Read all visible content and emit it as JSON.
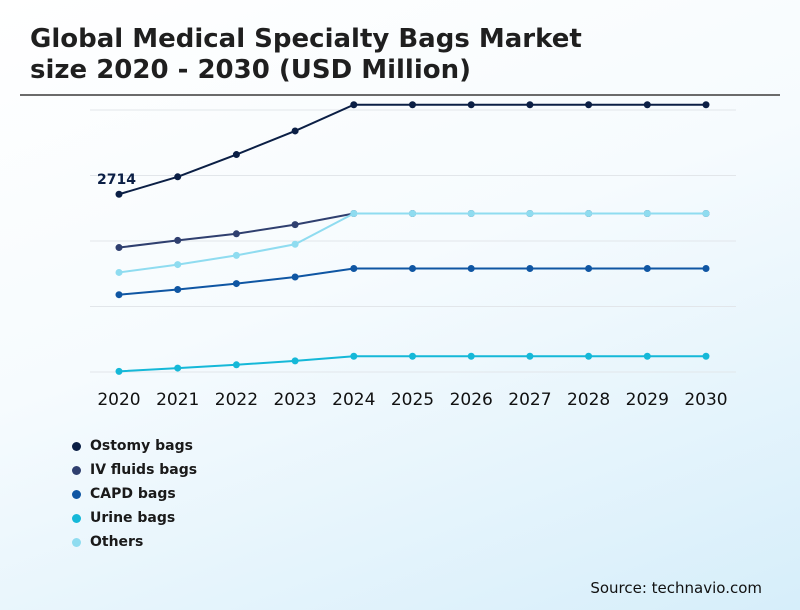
{
  "title_line1": "Global Medical Specialty Bags Market",
  "title_line2": "size 2020 - 2030 (USD Million)",
  "source": "Source: technavio.com",
  "chart_data": {
    "type": "line",
    "title": "Global Medical Specialty Bags Market size 2020 - 2030 (USD Million)",
    "xlabel": "",
    "ylabel": "",
    "x": [
      "2020",
      "2021",
      "2022",
      "2023",
      "2024",
      "2025",
      "2026",
      "2027",
      "2028",
      "2029",
      "2030"
    ],
    "ylim": [
      0,
      4000
    ],
    "grid": true,
    "legend": "bottom-left",
    "series": [
      {
        "name": "Ostomy bags",
        "color": "#0b1f45",
        "values": [
          2714,
          2980,
          3320,
          3680,
          4080,
          4080,
          4080,
          4080,
          4080,
          4080,
          4080
        ]
      },
      {
        "name": "IV fluids bags",
        "color": "#2f3f6f",
        "values": [
          1900,
          2010,
          2110,
          2250,
          2420,
          2420,
          2420,
          2420,
          2420,
          2420,
          2420
        ]
      },
      {
        "name": "CAPD bags",
        "color": "#0f56a3",
        "values": [
          1180,
          1260,
          1350,
          1450,
          1580,
          1580,
          1580,
          1580,
          1580,
          1580,
          1580
        ]
      },
      {
        "name": "Urine bags",
        "color": "#15b8d8",
        "values": [
          10,
          60,
          110,
          170,
          240,
          240,
          240,
          240,
          240,
          240,
          240
        ]
      },
      {
        "name": "Others",
        "color": "#8fdcf0",
        "values": [
          1520,
          1640,
          1780,
          1950,
          2420,
          2420,
          2420,
          2420,
          2420,
          2420,
          2420
        ]
      }
    ],
    "annotations": [
      {
        "series": "Ostomy bags",
        "x": "2020",
        "label": "2714"
      }
    ]
  }
}
